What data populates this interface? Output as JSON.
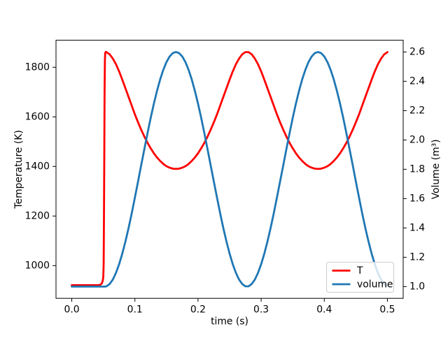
{
  "figure": {
    "xlabel": "time (s)",
    "ylabel_left": "Temperature (K)",
    "ylabel_right": "Volume (m³)",
    "background": "#ffffff",
    "frame_color": "#000000"
  },
  "legend": {
    "entries": [
      {
        "label": "T",
        "color": "#ff0000"
      },
      {
        "label": "volume",
        "color": "#1f77b4"
      }
    ]
  },
  "chart_data": {
    "type": "line",
    "title": "",
    "xlabel": "time (s)",
    "ylabel_left": "Temperature (K)",
    "ylabel_right": "Volume (m³)",
    "grid": false,
    "legend_position": "lower right",
    "xlim": [
      -0.025,
      0.525
    ],
    "ylim_left": [
      868,
      1909
    ],
    "ylim_right": [
      0.92,
      2.68
    ],
    "xticks": {
      "values": [
        0,
        0.1,
        0.2,
        0.3,
        0.4,
        0.5
      ],
      "labels": [
        "0.0",
        "0.1",
        "0.2",
        "0.3",
        "0.4",
        "0.5"
      ]
    },
    "yticks_left": {
      "values": [
        1000,
        1200,
        1400,
        1600,
        1800
      ],
      "labels": [
        "1000",
        "1200",
        "1400",
        "1600",
        "1800"
      ]
    },
    "yticks_right": {
      "values": [
        1.0,
        1.2,
        1.4,
        1.6,
        1.8,
        2.0,
        2.2,
        2.4,
        2.6
      ],
      "labels": [
        "1.0",
        "1.2",
        "1.4",
        "1.6",
        "1.8",
        "2.0",
        "2.2",
        "2.4",
        "2.6"
      ]
    },
    "x": [
      0,
      0.005,
      0.01,
      0.015,
      0.02,
      0.025,
      0.03,
      0.035,
      0.04,
      0.045,
      0.0475,
      0.049,
      0.05,
      0.0505,
      0.051,
      0.0515,
      0.052,
      0.0525,
      0.053,
      0.054,
      0.055,
      0.06,
      0.065,
      0.07,
      0.075,
      0.08,
      0.085,
      0.09,
      0.095,
      0.1,
      0.105,
      0.11,
      0.115,
      0.12,
      0.125,
      0.13,
      0.135,
      0.14,
      0.145,
      0.15,
      0.155,
      0.16,
      0.165,
      0.17,
      0.175,
      0.18,
      0.185,
      0.19,
      0.195,
      0.2,
      0.205,
      0.21,
      0.215,
      0.22,
      0.225,
      0.23,
      0.235,
      0.24,
      0.245,
      0.25,
      0.255,
      0.26,
      0.265,
      0.27,
      0.275,
      0.28,
      0.285,
      0.29,
      0.295,
      0.3,
      0.305,
      0.31,
      0.315,
      0.32,
      0.325,
      0.33,
      0.335,
      0.34,
      0.345,
      0.35,
      0.355,
      0.36,
      0.365,
      0.37,
      0.375,
      0.38,
      0.385,
      0.39,
      0.395,
      0.4,
      0.405,
      0.41,
      0.415,
      0.42,
      0.425,
      0.43,
      0.435,
      0.44,
      0.445,
      0.45,
      0.455,
      0.46,
      0.465,
      0.47,
      0.475,
      0.48,
      0.485,
      0.49,
      0.495,
      0.5
    ],
    "series": [
      {
        "name": "T",
        "axis": "left",
        "color": "#ff0000",
        "linewidth": 2,
        "values": [
          921,
          921,
          921,
          921,
          921,
          921,
          921,
          921,
          921,
          922,
          928,
          938,
          955,
          1010,
          1180,
          1450,
          1700,
          1830,
          1858,
          1862,
          1861,
          1852,
          1835,
          1812,
          1783,
          1750,
          1715,
          1680,
          1645,
          1610,
          1578,
          1548,
          1520,
          1495,
          1473,
          1453,
          1436,
          1422,
          1410,
          1401,
          1395,
          1391,
          1390,
          1391,
          1395,
          1401,
          1410,
          1422,
          1436,
          1453,
          1473,
          1495,
          1520,
          1548,
          1578,
          1610,
          1645,
          1680,
          1715,
          1750,
          1783,
          1812,
          1835,
          1852,
          1861,
          1861,
          1852,
          1835,
          1812,
          1783,
          1750,
          1715,
          1680,
          1645,
          1610,
          1578,
          1548,
          1520,
          1495,
          1473,
          1453,
          1436,
          1422,
          1410,
          1401,
          1395,
          1391,
          1390,
          1391,
          1395,
          1401,
          1410,
          1422,
          1436,
          1453,
          1473,
          1495,
          1520,
          1548,
          1578,
          1610,
          1645,
          1680,
          1715,
          1750,
          1783,
          1812,
          1835,
          1852,
          1861
        ]
      },
      {
        "name": "volume",
        "axis": "right",
        "color": "#1f77b4",
        "linewidth": 2,
        "values": [
          1,
          1,
          1,
          1,
          1,
          1,
          1,
          1,
          1,
          1,
          1,
          1,
          1,
          1,
          1,
          1,
          1,
          1,
          1,
          1.001,
          1.002,
          1.018,
          1.048,
          1.094,
          1.153,
          1.225,
          1.308,
          1.4,
          1.5,
          1.607,
          1.716,
          1.828,
          1.939,
          2.047,
          2.151,
          2.247,
          2.335,
          2.413,
          2.478,
          2.531,
          2.569,
          2.592,
          2.6,
          2.592,
          2.569,
          2.531,
          2.478,
          2.413,
          2.335,
          2.247,
          2.151,
          2.047,
          1.939,
          1.828,
          1.716,
          1.607,
          1.5,
          1.4,
          1.308,
          1.225,
          1.153,
          1.094,
          1.048,
          1.018,
          1.002,
          1.002,
          1.018,
          1.048,
          1.094,
          1.153,
          1.225,
          1.308,
          1.4,
          1.5,
          1.607,
          1.716,
          1.828,
          1.939,
          2.047,
          2.151,
          2.247,
          2.335,
          2.413,
          2.478,
          2.531,
          2.569,
          2.592,
          2.6,
          2.592,
          2.569,
          2.531,
          2.478,
          2.413,
          2.335,
          2.247,
          2.151,
          2.047,
          1.939,
          1.828,
          1.716,
          1.607,
          1.5,
          1.4,
          1.308,
          1.225,
          1.153,
          1.094,
          1.048,
          1.018,
          1.002
        ]
      }
    ]
  }
}
